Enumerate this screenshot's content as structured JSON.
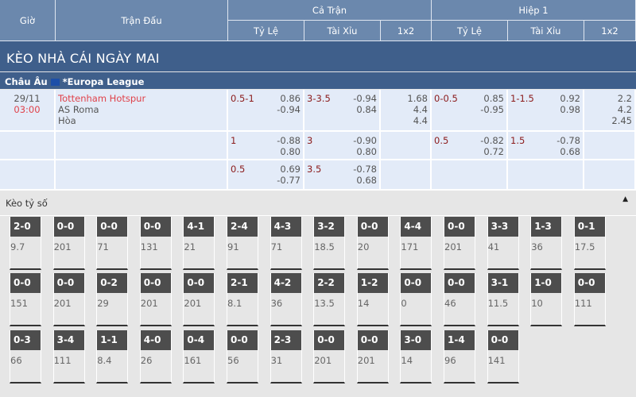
{
  "header": {
    "time": "Giờ",
    "match": "Trận Đấu",
    "full": "Cả Trận",
    "half": "Hiệp 1",
    "cols": [
      "Tỷ Lệ",
      "Tài Xỉu",
      "1x2",
      "Tỷ Lệ",
      "Tài Xỉu",
      "1x2"
    ]
  },
  "title": "KÈO NHÀ CÁI NGÀY MAI",
  "league": {
    "region": "Châu Âu",
    "name": "*Europa League",
    "flag": "eu-flag-icon"
  },
  "match": {
    "date": "29/11",
    "time": "03:00",
    "home": "Tottenham Hotspur",
    "away": "AS Roma",
    "draw": "Hòa"
  },
  "rows": [
    {
      "ft_hdp": "0.5-1",
      "ft_hdp_o": [
        "0.86",
        "-0.94"
      ],
      "ft_ou": "3-3.5",
      "ft_ou_o": [
        "-0.94",
        "0.84"
      ],
      "ft_1x2": [
        "1.68",
        "4.4",
        "4.4"
      ],
      "h1_hdp": "0-0.5",
      "h1_hdp_o": [
        "0.85",
        "-0.95"
      ],
      "h1_ou": "1-1.5",
      "h1_ou_o": [
        "0.92",
        "0.98"
      ],
      "h1_1x2": [
        "2.2",
        "4.2",
        "2.45"
      ]
    },
    {
      "ft_hdp": "1",
      "ft_hdp_o": [
        "-0.88",
        "0.80"
      ],
      "ft_ou": "3",
      "ft_ou_o": [
        "-0.90",
        "0.80"
      ],
      "h1_hdp": "0.5",
      "h1_hdp_o": [
        "-0.82",
        "0.72"
      ],
      "h1_ou": "1.5",
      "h1_ou_o": [
        "-0.78",
        "0.68"
      ]
    },
    {
      "ft_hdp": "0.5",
      "ft_hdp_o": [
        "0.69",
        "-0.77"
      ],
      "ft_ou": "3.5",
      "ft_ou_o": [
        "-0.78",
        "0.68"
      ]
    }
  ],
  "correct_score": {
    "title": "Kèo tỷ số",
    "toggle_icon": "caret-up-icon",
    "items": [
      [
        "2-0",
        "9.7"
      ],
      [
        "0-0",
        "201"
      ],
      [
        "0-0",
        "71"
      ],
      [
        "0-0",
        "131"
      ],
      [
        "4-1",
        "21"
      ],
      [
        "2-4",
        "91"
      ],
      [
        "4-3",
        "71"
      ],
      [
        "3-2",
        "18.5"
      ],
      [
        "0-0",
        "20"
      ],
      [
        "4-4",
        "171"
      ],
      [
        "0-0",
        "201"
      ],
      [
        "3-3",
        "41"
      ],
      [
        "1-3",
        "36"
      ],
      [
        "0-1",
        "17.5"
      ],
      [
        "0-0",
        "151"
      ],
      [
        "0-0",
        "201"
      ],
      [
        "0-2",
        "29"
      ],
      [
        "0-0",
        "201"
      ],
      [
        "0-0",
        "201"
      ],
      [
        "2-1",
        "8.1"
      ],
      [
        "4-2",
        "36"
      ],
      [
        "2-2",
        "13.5"
      ],
      [
        "1-2",
        "14"
      ],
      [
        "0-0",
        "0"
      ],
      [
        "0-0",
        "46"
      ],
      [
        "3-1",
        "11.5"
      ],
      [
        "1-0",
        "10"
      ],
      [
        "0-0",
        "111"
      ],
      [
        "0-3",
        "66"
      ],
      [
        "3-4",
        "111"
      ],
      [
        "1-1",
        "8.4"
      ],
      [
        "4-0",
        "26"
      ],
      [
        "0-4",
        "161"
      ],
      [
        "0-0",
        "56"
      ],
      [
        "2-3",
        "31"
      ],
      [
        "0-0",
        "201"
      ],
      [
        "0-0",
        "201"
      ],
      [
        "3-0",
        "14"
      ],
      [
        "1-4",
        "96"
      ],
      [
        "0-0",
        "141"
      ]
    ]
  }
}
